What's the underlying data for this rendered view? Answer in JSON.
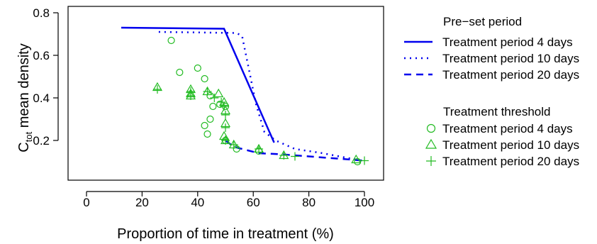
{
  "chart_data": {
    "type": "scatter",
    "xlabel": "Proportion of time in treatment (%)",
    "ylabel": {
      "main": "C",
      "sub": "tot",
      "rest": " mean density"
    },
    "xlim": [
      0,
      100
    ],
    "ylim": [
      0.05,
      0.8
    ],
    "x_ticks": [
      0,
      20,
      40,
      60,
      80,
      100
    ],
    "y_ticks": [
      0.2,
      0.4,
      0.6,
      0.8
    ],
    "x_tick_labels": [
      "0",
      "20",
      "40",
      "60",
      "80",
      "100"
    ],
    "y_tick_labels": [
      "0.2",
      "0.4",
      "0.6",
      "0.8"
    ],
    "grid": false,
    "legend_placement": "right",
    "colors": {
      "series": "#0000ee",
      "threshold": "#22bb22"
    },
    "legend": {
      "preset_title": "Pre−set period",
      "threshold_title": "Treatment threshold"
    },
    "lines": [
      {
        "name": "Treatment period 4 days",
        "dash": "solid",
        "points": [
          [
            12.5,
            0.73
          ],
          [
            49.5,
            0.725
          ],
          [
            67.5,
            0.19
          ]
        ]
      },
      {
        "name": "Treatment period 10 days",
        "dash": "dotted",
        "points": [
          [
            26,
            0.71
          ],
          [
            54,
            0.705
          ],
          [
            56,
            0.69
          ],
          [
            61,
            0.37
          ],
          [
            64,
            0.24
          ],
          [
            68,
            0.2
          ],
          [
            75,
            0.16
          ],
          [
            85,
            0.14
          ],
          [
            97,
            0.11
          ]
        ]
      },
      {
        "name": "Treatment period 20 days",
        "dash": "dashed",
        "points": [
          [
            50,
            0.2
          ],
          [
            53,
            0.17
          ],
          [
            62,
            0.14
          ],
          [
            70,
            0.135
          ],
          [
            80,
            0.125
          ],
          [
            90,
            0.115
          ],
          [
            100,
            0.105
          ]
        ]
      }
    ],
    "scatter": [
      {
        "name": "Treatment period 4 days",
        "marker": "circle",
        "points": [
          [
            30.5,
            0.67
          ],
          [
            33.5,
            0.52
          ],
          [
            40,
            0.54
          ],
          [
            42.5,
            0.49
          ],
          [
            44.5,
            0.41
          ],
          [
            45.5,
            0.36
          ],
          [
            44.5,
            0.3
          ],
          [
            42.5,
            0.27
          ],
          [
            43.5,
            0.23
          ],
          [
            48,
            0.37
          ],
          [
            50,
            0.36
          ],
          [
            50,
            0.2
          ],
          [
            54,
            0.16
          ],
          [
            62,
            0.15
          ],
          [
            97.5,
            0.1
          ]
        ]
      },
      {
        "name": "Treatment period 10 days",
        "marker": "triangle",
        "points": [
          [
            25.5,
            0.45
          ],
          [
            37.5,
            0.44
          ],
          [
            37.5,
            0.42
          ],
          [
            37.5,
            0.41
          ],
          [
            43.5,
            0.43
          ],
          [
            47.5,
            0.42
          ],
          [
            49.5,
            0.38
          ],
          [
            50,
            0.34
          ],
          [
            50,
            0.28
          ],
          [
            49.5,
            0.22
          ],
          [
            50,
            0.2
          ],
          [
            53,
            0.18
          ],
          [
            62,
            0.16
          ],
          [
            71,
            0.13
          ],
          [
            97,
            0.11
          ]
        ]
      },
      {
        "name": "Treatment period 20 days",
        "marker": "plus",
        "points": [
          [
            25.5,
            0.44
          ],
          [
            37.5,
            0.43
          ],
          [
            37.5,
            0.41
          ],
          [
            43.5,
            0.43
          ],
          [
            46,
            0.4
          ],
          [
            48.5,
            0.38
          ],
          [
            49.5,
            0.36
          ],
          [
            50,
            0.32
          ],
          [
            50,
            0.26
          ],
          [
            50,
            0.2
          ],
          [
            53,
            0.18
          ],
          [
            62,
            0.16
          ],
          [
            71,
            0.13
          ],
          [
            75,
            0.125
          ],
          [
            100,
            0.105
          ]
        ]
      }
    ]
  }
}
